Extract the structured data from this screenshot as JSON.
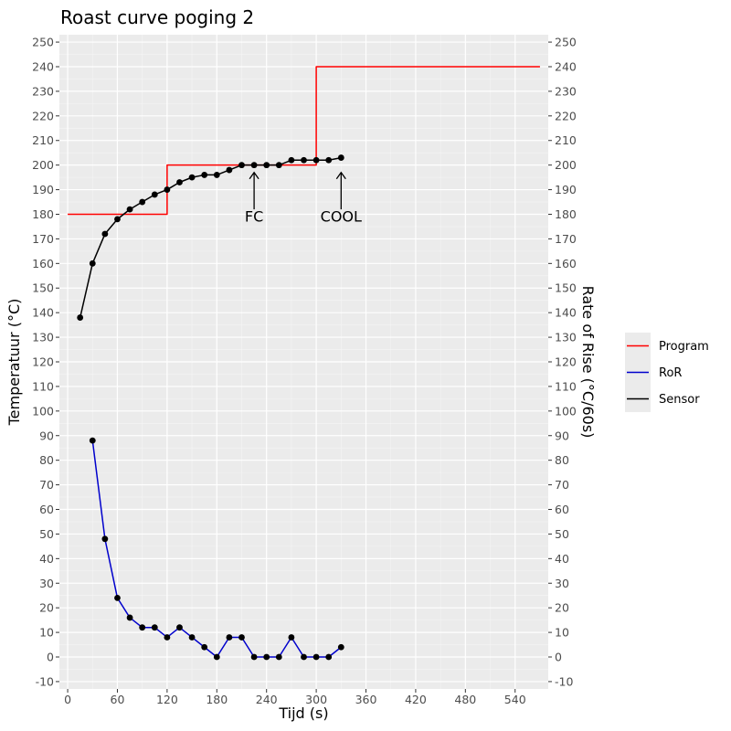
{
  "chart_data": {
    "type": "line",
    "title": "Roast curve poging 2",
    "xlabel": "Tijd (s)",
    "ylabel": "Temperatuur (°C)",
    "ylabel_right": "Rate of Rise (°C/60s)",
    "xlim": [
      -10,
      580
    ],
    "ylim": [
      -13,
      253
    ],
    "x_ticks": [
      0,
      60,
      120,
      180,
      240,
      300,
      360,
      420,
      480,
      540
    ],
    "y_ticks": [
      -10,
      0,
      10,
      20,
      30,
      40,
      50,
      60,
      70,
      80,
      90,
      100,
      110,
      120,
      130,
      140,
      150,
      160,
      170,
      180,
      190,
      200,
      210,
      220,
      230,
      240,
      250
    ],
    "grid": true,
    "background": "#ebebeb",
    "legend_position": "right",
    "series": [
      {
        "name": "Program",
        "color": "#ff0000",
        "style": "step",
        "points": false,
        "x": [
          0,
          120,
          120,
          300,
          300,
          570
        ],
        "y": [
          180,
          180,
          200,
          200,
          240,
          240
        ]
      },
      {
        "name": "RoR",
        "color": "#0000cc",
        "style": "line",
        "points": true,
        "x": [
          30,
          45,
          60,
          75,
          90,
          105,
          120,
          135,
          150,
          165,
          180,
          195,
          210,
          225,
          240,
          255,
          270,
          285,
          300,
          315,
          330
        ],
        "y": [
          88,
          48,
          24,
          16,
          12,
          12,
          8,
          12,
          8,
          4,
          0,
          8,
          8,
          0,
          0,
          0,
          8,
          0,
          0,
          0,
          4
        ]
      },
      {
        "name": "Sensor",
        "color": "#000000",
        "style": "line",
        "points": true,
        "x": [
          15,
          30,
          45,
          60,
          75,
          90,
          105,
          120,
          135,
          150,
          165,
          180,
          195,
          210,
          225,
          240,
          255,
          270,
          285,
          300,
          315,
          330
        ],
        "y": [
          138,
          160,
          172,
          178,
          182,
          185,
          188,
          190,
          193,
          195,
          196,
          196,
          198,
          200,
          200,
          200,
          200,
          202,
          202,
          202,
          202,
          203
        ]
      }
    ],
    "annotations": [
      {
        "label": "FC",
        "x": 225,
        "arrow_from": 182,
        "arrow_to": 197,
        "text_y": 177
      },
      {
        "label": "COOL",
        "x": 330,
        "arrow_from": 182,
        "arrow_to": 197,
        "text_y": 177
      }
    ]
  }
}
